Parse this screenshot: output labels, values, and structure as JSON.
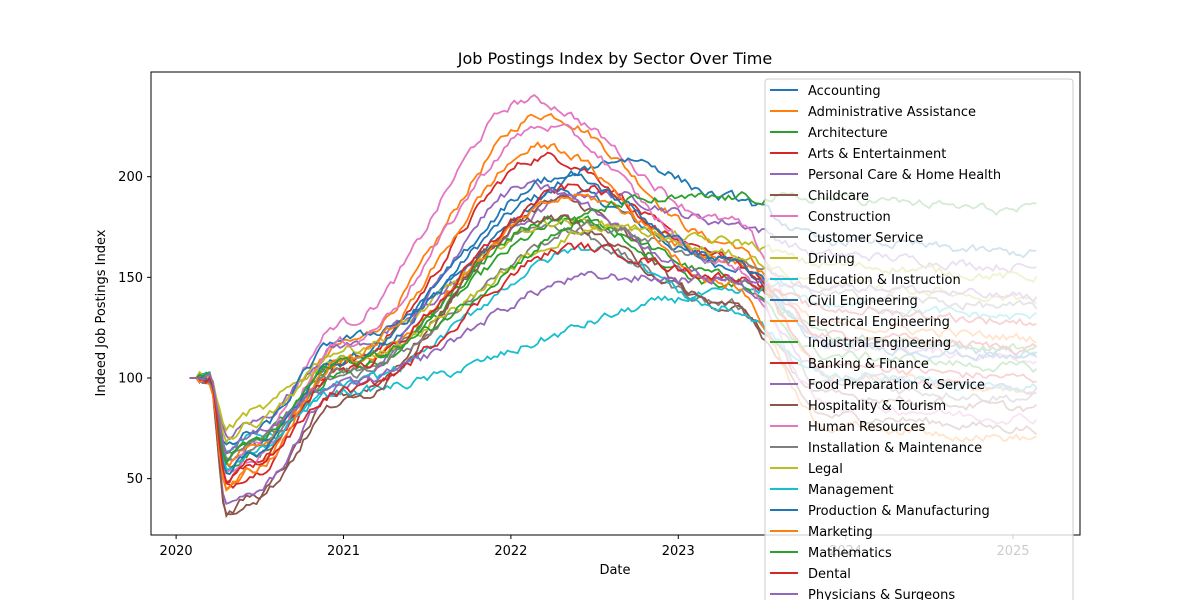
{
  "chart_data": {
    "type": "line",
    "title": "Job Postings Index by Sector Over Time",
    "xlabel": "Date",
    "ylabel": "Indeed Job Postings Index",
    "x_ticks": [
      "2020",
      "2021",
      "2022",
      "2023",
      "2024",
      "2025"
    ],
    "x_tick_years": [
      2020,
      2021,
      2022,
      2023,
      2024,
      2025
    ],
    "xlim": [
      2019.85,
      2025.4
    ],
    "y_ticks": [
      50,
      100,
      150,
      200
    ],
    "ylim": [
      22,
      252
    ],
    "grid": false,
    "legend_placement": "upper right",
    "colors": [
      "#1f77b4",
      "#ff7f0e",
      "#2ca02c",
      "#d62728",
      "#9467bd",
      "#8c564b",
      "#e377c2",
      "#7f7f7f",
      "#bcbd22",
      "#17becf"
    ],
    "series": [
      {
        "name": "Accounting",
        "peak_date": 2022.3,
        "peak": 193,
        "low": 58,
        "end": 112
      },
      {
        "name": "Administrative Assistance",
        "peak_date": 2022.2,
        "peak": 231,
        "low": 47,
        "end": 95
      },
      {
        "name": "Architecture",
        "peak_date": 2022.4,
        "peak": 178,
        "low": 62,
        "end": 115
      },
      {
        "name": "Arts & Entertainment",
        "peak_date": 2022.2,
        "peak": 210,
        "low": 45,
        "end": 100
      },
      {
        "name": "Personal Care & Home Health",
        "peak_date": 2022.5,
        "peak": 192,
        "low": 70,
        "end": 155
      },
      {
        "name": "Childcare",
        "peak_date": 2022.3,
        "peak": 188,
        "low": 33,
        "end": 75
      },
      {
        "name": "Construction",
        "peak_date": 2022.1,
        "peak": 238,
        "low": 60,
        "end": 110
      },
      {
        "name": "Customer Service",
        "peak_date": 2022.2,
        "peak": 176,
        "low": 55,
        "end": 90
      },
      {
        "name": "Driving",
        "peak_date": 2022.3,
        "peak": 178,
        "low": 75,
        "end": 150
      },
      {
        "name": "Education & Instruction",
        "peak_date": 2023.6,
        "peak": 145,
        "low": 62,
        "end": 130
      },
      {
        "name": "Civil Engineering",
        "peak_date": 2022.7,
        "peak": 209,
        "low": 65,
        "end": 162
      },
      {
        "name": "Electrical Engineering",
        "peak_date": 2022.4,
        "peak": 190,
        "low": 58,
        "end": 120
      },
      {
        "name": "Industrial Engineering",
        "peak_date": 2022.3,
        "peak": 180,
        "low": 55,
        "end": 105
      },
      {
        "name": "Banking & Finance",
        "peak_date": 2022.4,
        "peak": 195,
        "low": 50,
        "end": 115
      },
      {
        "name": "Food Preparation & Service",
        "peak_date": 2022.1,
        "peak": 195,
        "low": 35,
        "end": 95
      },
      {
        "name": "Hospitality & Tourism",
        "peak_date": 2022.2,
        "peak": 180,
        "low": 32,
        "end": 85
      },
      {
        "name": "Human Resources",
        "peak_date": 2022.2,
        "peak": 225,
        "low": 52,
        "end": 80
      },
      {
        "name": "Installation & Maintenance",
        "peak_date": 2022.5,
        "peak": 175,
        "low": 60,
        "end": 135
      },
      {
        "name": "Legal",
        "peak_date": 2022.6,
        "peak": 175,
        "low": 70,
        "end": 140
      },
      {
        "name": "Management",
        "peak_date": 2022.5,
        "peak": 165,
        "low": 55,
        "end": 95
      },
      {
        "name": "Production & Manufacturing",
        "peak_date": 2022.3,
        "peak": 200,
        "low": 55,
        "end": 110
      },
      {
        "name": "Marketing",
        "peak_date": 2022.2,
        "peak": 215,
        "low": 45,
        "end": 70
      },
      {
        "name": "Mathematics",
        "peak_date": 2022.8,
        "peak": 188,
        "low": 60,
        "end": 183
      },
      {
        "name": "Dental",
        "peak_date": 2022.4,
        "peak": 165,
        "low": 50,
        "end": 128
      },
      {
        "name": "Physicians & Surgeons",
        "peak_date": 2022.5,
        "peak": 150,
        "low": 65,
        "end": 140
      }
    ]
  }
}
